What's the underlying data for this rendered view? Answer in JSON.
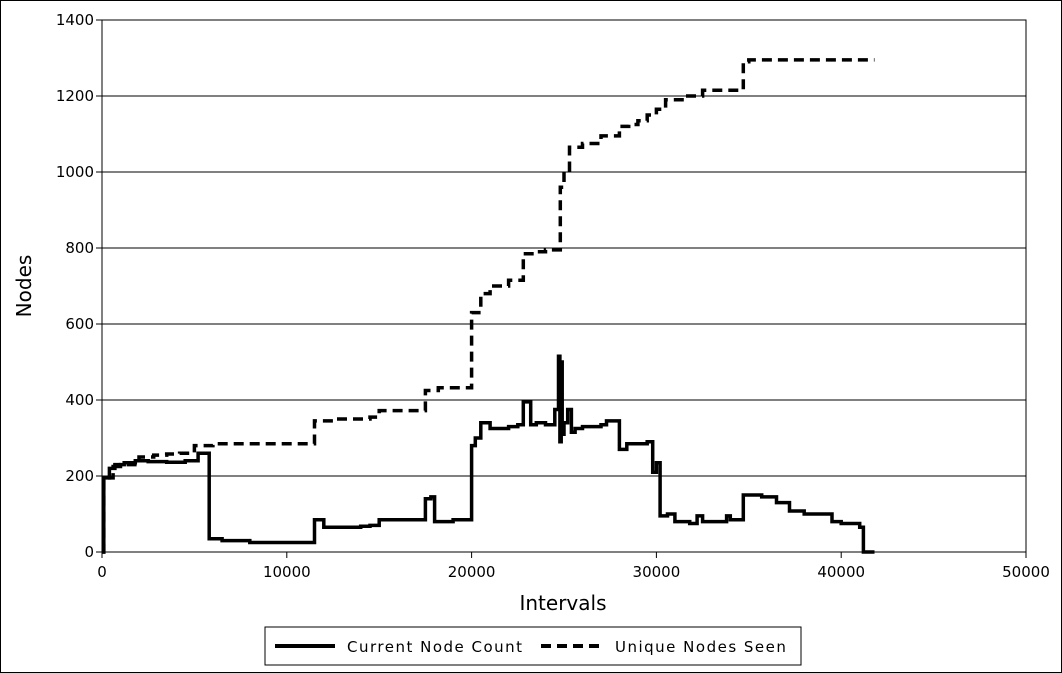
{
  "chart_data": {
    "type": "line",
    "title": "",
    "xlabel": "Intervals",
    "ylabel": "Nodes",
    "xlim": [
      0,
      50000
    ],
    "ylim": [
      0,
      1400
    ],
    "x_ticks": [
      "0",
      "10000",
      "20000",
      "30000",
      "40000",
      "50000"
    ],
    "y_ticks": [
      "0",
      "200",
      "400",
      "600",
      "800",
      "1000",
      "1200",
      "1400"
    ],
    "grid": "horizontal",
    "legend_position": "bottom",
    "series": [
      {
        "name": "Current Node Count",
        "style": "solid",
        "color": "#000000",
        "step": true,
        "x": [
          0,
          100,
          400,
          700,
          1200,
          1800,
          2500,
          3500,
          4500,
          5200,
          5800,
          6500,
          8000,
          11500,
          12000,
          13000,
          14000,
          14500,
          15000,
          16000,
          17500,
          17800,
          18000,
          18500,
          19000,
          20000,
          20200,
          20500,
          21000,
          22000,
          22500,
          22800,
          23200,
          23500,
          24000,
          24500,
          24700,
          24780,
          24850,
          24900,
          25000,
          25200,
          25400,
          25600,
          26000,
          27000,
          27300,
          27800,
          28000,
          28400,
          29000,
          29500,
          29800,
          30000,
          30200,
          30600,
          31000,
          31800,
          32200,
          32500,
          33000,
          33800,
          34000,
          34700,
          35000,
          35700,
          36500,
          37200,
          38000,
          39500,
          40000,
          41000,
          41200,
          41800
        ],
        "y": [
          0,
          195,
          220,
          230,
          235,
          240,
          238,
          236,
          240,
          260,
          35,
          30,
          25,
          85,
          65,
          65,
          68,
          70,
          85,
          85,
          140,
          145,
          80,
          80,
          85,
          280,
          300,
          340,
          325,
          330,
          335,
          395,
          335,
          340,
          335,
          375,
          515,
          290,
          500,
          310,
          340,
          375,
          315,
          325,
          330,
          335,
          345,
          345,
          270,
          285,
          285,
          290,
          210,
          235,
          95,
          100,
          80,
          75,
          95,
          80,
          80,
          95,
          85,
          150,
          150,
          145,
          130,
          108,
          100,
          80,
          75,
          65,
          0,
          0
        ]
      },
      {
        "name": "Unique Nodes Seen",
        "style": "dashed",
        "color": "#000000",
        "step": true,
        "x": [
          0,
          100,
          600,
          1000,
          2000,
          2800,
          3500,
          4200,
          5000,
          6000,
          8000,
          11500,
          12500,
          14500,
          15000,
          17500,
          18200,
          20000,
          20500,
          21000,
          22000,
          22800,
          23500,
          24000,
          24800,
          25000,
          25300,
          26000,
          27000,
          28000,
          28500,
          29000,
          29500,
          30000,
          30500,
          31500,
          32500,
          34700,
          35000,
          36000,
          41800
        ],
        "y": [
          0,
          195,
          225,
          230,
          250,
          255,
          258,
          260,
          280,
          285,
          285,
          345,
          350,
          355,
          372,
          425,
          432,
          630,
          680,
          700,
          715,
          785,
          790,
          795,
          960,
          1000,
          1065,
          1075,
          1095,
          1120,
          1125,
          1135,
          1150,
          1165,
          1190,
          1200,
          1215,
          1290,
          1295,
          1295,
          1295
        ]
      }
    ]
  }
}
